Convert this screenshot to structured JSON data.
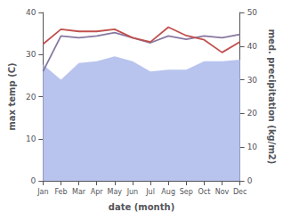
{
  "chart_data": {
    "type": "line",
    "xlabel": "date (month)",
    "ylabel": "max temp (C)",
    "y2label": "med. precipitation (kg/m2)",
    "categories": [
      "Jan",
      "Feb",
      "Mar",
      "Apr",
      "May",
      "Jun",
      "Jul",
      "Aug",
      "Sep",
      "Oct",
      "Nov",
      "Dec"
    ],
    "series": [
      {
        "type": "area",
        "axis": "y2",
        "color": "#b8c4ee",
        "values": [
          34.5,
          30.0,
          35.0,
          35.5,
          37.0,
          35.5,
          32.5,
          33.0,
          33.0,
          35.5,
          35.5,
          36.0
        ]
      },
      {
        "type": "line",
        "axis": "y2",
        "color": "#8878a0",
        "values": [
          32.5,
          43.0,
          42.5,
          43.0,
          44.0,
          42.5,
          41.0,
          43.0,
          42.0,
          43.0,
          42.5,
          43.5
        ]
      },
      {
        "type": "line",
        "color": "#c0504d",
        "values": [
          32.5,
          36.0,
          35.5,
          35.5,
          36.0,
          34.0,
          33.0,
          36.5,
          34.5,
          33.5,
          30.5,
          33.0
        ]
      }
    ],
    "ylim": [
      0,
      40
    ],
    "yticks": [
      0,
      10,
      20,
      30,
      40
    ],
    "y2lim": [
      0,
      50
    ],
    "y2ticks": [
      0,
      10,
      20,
      30,
      40,
      50
    ],
    "grid": false
  }
}
